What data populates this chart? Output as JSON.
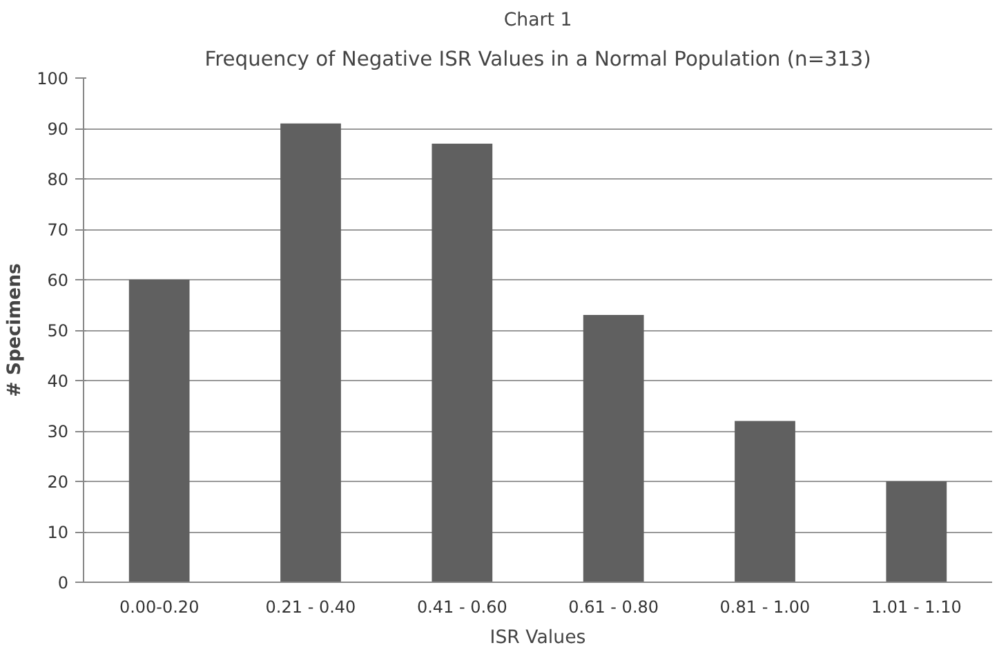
{
  "chart_data": {
    "type": "bar",
    "title": "Chart 1",
    "subtitle": "Frequency of Negative ISR Values in a Normal Population (n=313)",
    "xlabel": "ISR Values",
    "ylabel": "# Specimens",
    "categories": [
      "0.00-0.20",
      "0.21 - 0.40",
      "0.41 - 0.60",
      "0.61 - 0.80",
      "0.81 - 1.00",
      "1.01 - 1.10"
    ],
    "values": [
      60,
      91,
      87,
      53,
      32,
      20
    ],
    "color": "#606060",
    "ylim": [
      0,
      100
    ],
    "yticks": [
      0,
      10,
      20,
      30,
      40,
      50,
      60,
      70,
      80,
      90,
      100
    ],
    "grid": "y"
  }
}
